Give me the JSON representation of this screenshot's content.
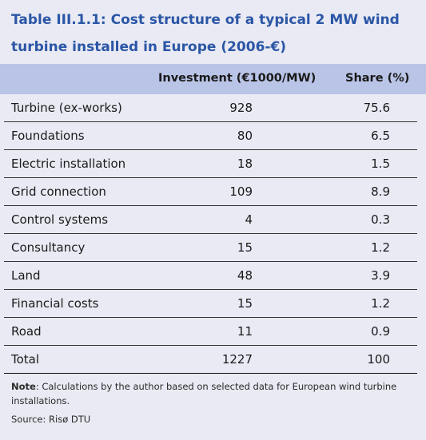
{
  "table": {
    "title": "Table III.1.1: Cost structure of a typical 2 MW wind turbine installed in Europe (2006-€)",
    "headers": {
      "investment": "Investment (€1000/MW)",
      "share": "Share (%)"
    },
    "rows": [
      {
        "label": "Turbine (ex-works)",
        "investment": "928",
        "share": "75.6"
      },
      {
        "label": "Foundations",
        "investment": "80",
        "share": "6.5"
      },
      {
        "label": "Electric installation",
        "investment": "18",
        "share": "1.5"
      },
      {
        "label": "Grid connection",
        "investment": "109",
        "share": "8.9"
      },
      {
        "label": "Control systems",
        "investment": "4",
        "share": "0.3"
      },
      {
        "label": "Consultancy",
        "investment": "15",
        "share": "1.2"
      },
      {
        "label": "Land",
        "investment": "48",
        "share": "3.9"
      },
      {
        "label": "Financial costs",
        "investment": "15",
        "share": "1.2"
      },
      {
        "label": "Road",
        "investment": "11",
        "share": "0.9"
      },
      {
        "label": "Total",
        "investment": "1227",
        "share": "100"
      }
    ],
    "note_label": "Note",
    "note_text": ": Calculations by the author based on selected data for European wind turbine installations.",
    "source": "Source: Risø DTU"
  },
  "colors": {
    "title": "#2b56a6",
    "header_band": "#b9c4e6",
    "background": "#e9eaf3"
  }
}
